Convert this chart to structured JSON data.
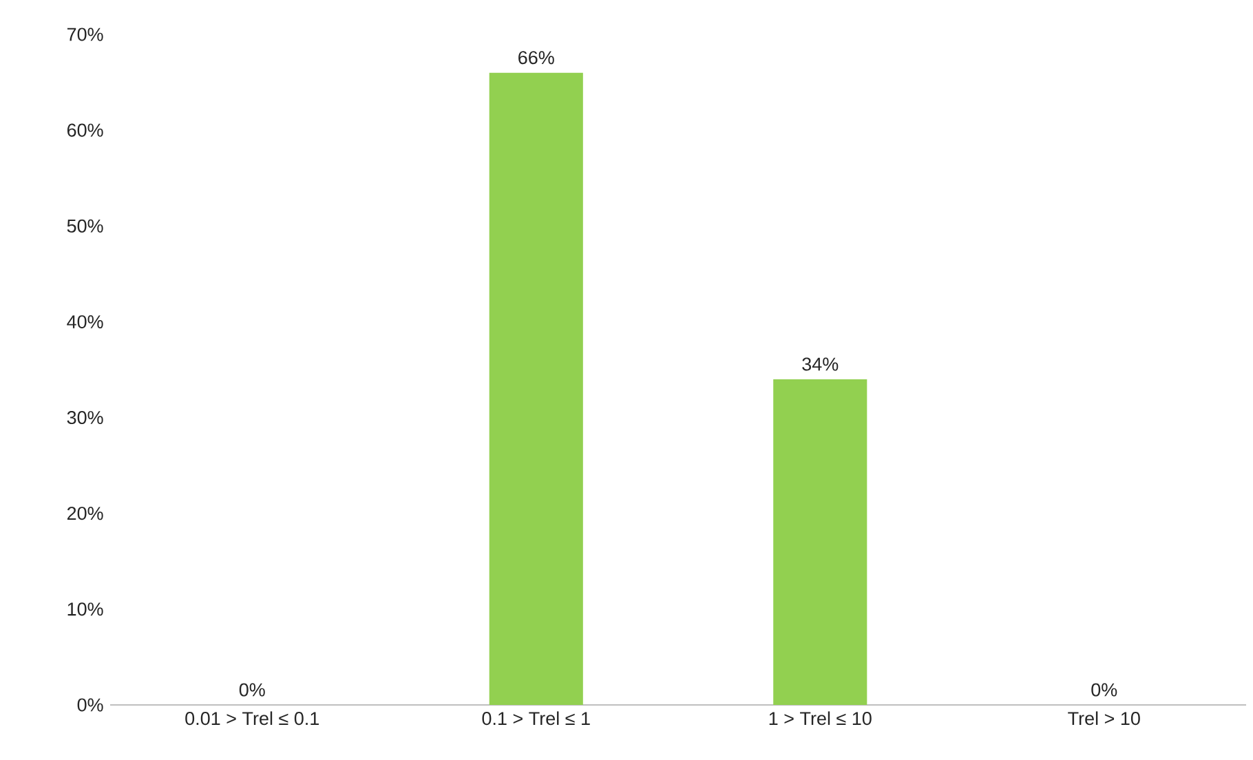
{
  "chart_data": {
    "type": "bar",
    "categories": [
      "0.01 > Trel ≤ 0.1",
      "0.1 > Trel ≤ 1",
      "1 > Trel ≤ 10",
      "Trel > 10"
    ],
    "values": [
      0,
      66,
      34,
      0
    ],
    "value_labels": [
      "0%",
      "66%",
      "34%",
      "0%"
    ],
    "color": "#92d050",
    "ylim": [
      0,
      70
    ],
    "yticks": [
      {
        "value": 0,
        "label": "0%"
      },
      {
        "value": 10,
        "label": "10%"
      },
      {
        "value": 20,
        "label": "20%"
      },
      {
        "value": 30,
        "label": "30%"
      },
      {
        "value": 40,
        "label": "40%"
      },
      {
        "value": 50,
        "label": "50%"
      },
      {
        "value": 60,
        "label": "60%"
      },
      {
        "value": 70,
        "label": "70%"
      }
    ],
    "grid": false
  }
}
